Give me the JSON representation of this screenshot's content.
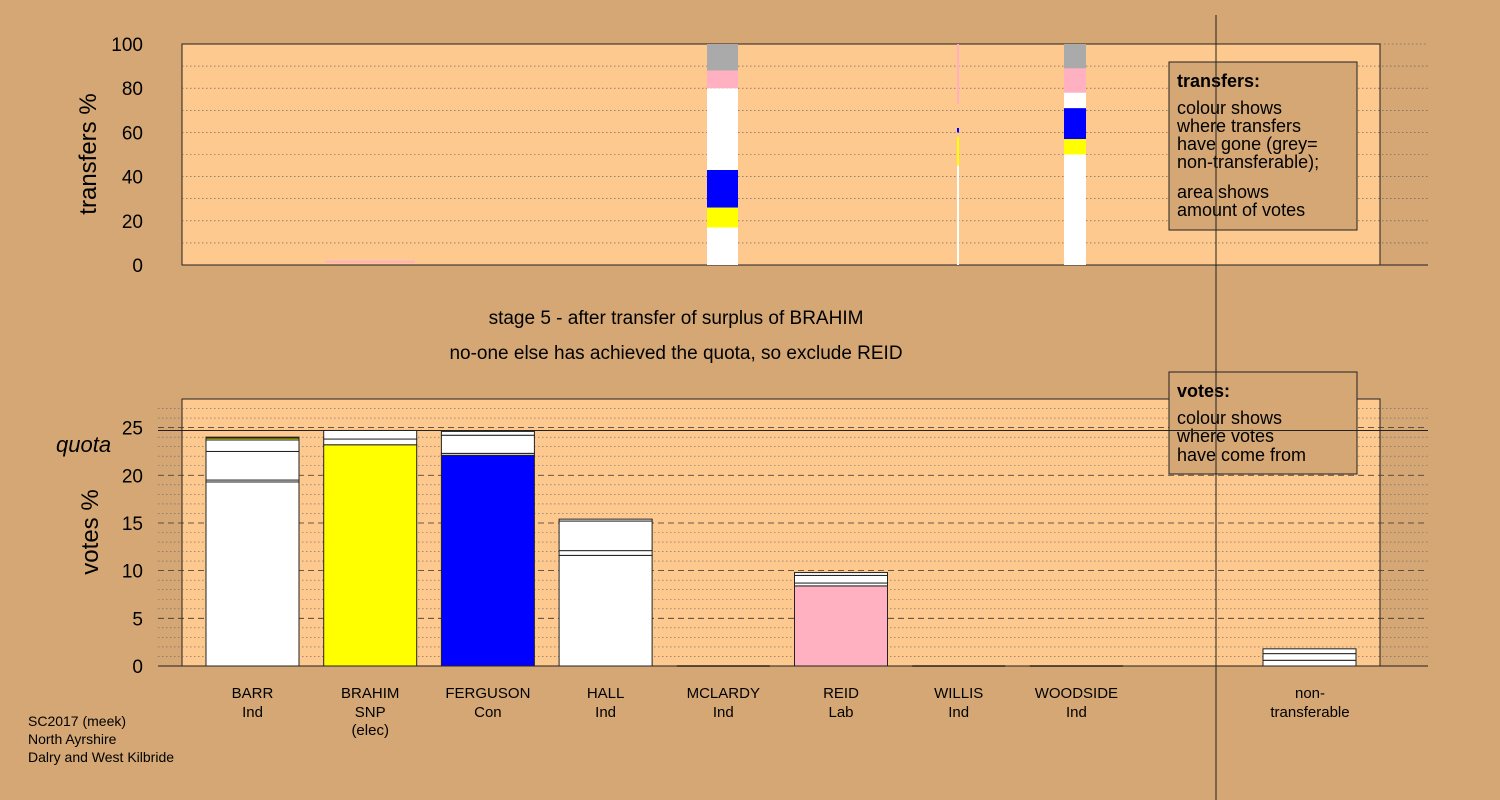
{
  "colors": {
    "background": "#d4a774",
    "plot_area": "#fec98f",
    "white": "#ffffff",
    "yellow": "#ffff00",
    "blue": "#0000ff",
    "pink": "#ffb1c1",
    "grey": "#aaaaaa"
  },
  "chart_data": [
    {
      "id": "transfers",
      "type": "bar",
      "stacked": true,
      "ylabel": "transfers %",
      "ylim": [
        0,
        100
      ],
      "yticks": [
        0,
        20,
        40,
        60,
        80,
        100
      ],
      "grid": true,
      "legend_box": {
        "title": "transfers:",
        "lines_1": [
          "colour shows",
          "where transfers",
          "have gone (grey=",
          "non-transferable);"
        ],
        "lines_2": [
          "area shows",
          "amount of votes"
        ]
      },
      "columns": [
        {
          "candidate": "BRAHIM",
          "width_share": 0.1,
          "segments": [
            {
              "color": "pink",
              "from": 1,
              "to": 2
            }
          ]
        },
        {
          "candidate": "REID",
          "width_share": 0.3,
          "segments": [
            {
              "color": "white",
              "from": 0,
              "to": 17
            },
            {
              "color": "yellow",
              "from": 17,
              "to": 26
            },
            {
              "color": "blue",
              "from": 26,
              "to": 43
            },
            {
              "color": "white",
              "from": 43,
              "to": 80
            },
            {
              "color": "pink",
              "from": 80,
              "to": 88
            },
            {
              "color": "grey",
              "from": 88,
              "to": 100
            }
          ]
        },
        {
          "candidate": "WILLIS",
          "width_share": 0.02,
          "segments": [
            {
              "color": "white",
              "from": 0,
              "to": 45
            },
            {
              "color": "yellow",
              "from": 45,
              "to": 58
            },
            {
              "color": "blue",
              "from": 60,
              "to": 62
            },
            {
              "color": "pink",
              "from": 73,
              "to": 100
            }
          ]
        },
        {
          "candidate": "WOODSIDE",
          "width_share": 0.22,
          "segments": [
            {
              "color": "white",
              "from": 0,
              "to": 50
            },
            {
              "color": "yellow",
              "from": 50,
              "to": 57
            },
            {
              "color": "blue",
              "from": 57,
              "to": 71
            },
            {
              "color": "white",
              "from": 71,
              "to": 78
            },
            {
              "color": "pink",
              "from": 78,
              "to": 89
            },
            {
              "color": "grey",
              "from": 89,
              "to": 100
            }
          ]
        }
      ]
    },
    {
      "id": "votes",
      "type": "bar",
      "stacked": true,
      "ylabel": "votes %",
      "ylim": [
        0,
        28
      ],
      "yticks": [
        0,
        5,
        10,
        15,
        20,
        25
      ],
      "quota": 24.7,
      "quota_label": "quota",
      "grid": true,
      "legend_box": {
        "title": "votes:",
        "lines": [
          "colour shows",
          "where votes",
          "have come from"
        ]
      },
      "categories": [
        {
          "name": "BARR",
          "party": "Ind",
          "note": "",
          "segments": [
            {
              "color": "white",
              "value": 19.3
            },
            {
              "color": "white",
              "value": 0.2
            },
            {
              "color": "white",
              "value": 3.0
            },
            {
              "color": "white",
              "value": 1.2
            },
            {
              "color": "yellow",
              "value": 0.2
            },
            {
              "color": "white",
              "value": 0.1
            }
          ]
        },
        {
          "name": "BRAHIM",
          "party": "SNP",
          "note": "(elec)",
          "segments": [
            {
              "color": "yellow",
              "value": 23.2
            },
            {
              "color": "white",
              "value": 0.6
            },
            {
              "color": "white",
              "value": 0.9
            }
          ]
        },
        {
          "name": "FERGUSON",
          "party": "Con",
          "note": "",
          "segments": [
            {
              "color": "blue",
              "value": 22.1
            },
            {
              "color": "white",
              "value": 0.2
            },
            {
              "color": "white",
              "value": 1.9
            },
            {
              "color": "white",
              "value": 0.4
            }
          ]
        },
        {
          "name": "HALL",
          "party": "Ind",
          "note": "",
          "segments": [
            {
              "color": "white",
              "value": 11.6
            },
            {
              "color": "white",
              "value": 0.5
            },
            {
              "color": "white",
              "value": 3.1
            },
            {
              "color": "white",
              "value": 0.2
            }
          ]
        },
        {
          "name": "MCLARDY",
          "party": "Ind",
          "note": "",
          "segments": []
        },
        {
          "name": "REID",
          "party": "Lab",
          "note": "",
          "segments": [
            {
              "color": "pink",
              "value": 8.4
            },
            {
              "color": "white",
              "value": 0.3
            },
            {
              "color": "white",
              "value": 0.8
            },
            {
              "color": "white",
              "value": 0.3
            }
          ]
        },
        {
          "name": "WILLIS",
          "party": "Ind",
          "note": "",
          "segments": []
        },
        {
          "name": "WOODSIDE",
          "party": "Ind",
          "note": "",
          "segments": []
        }
      ],
      "nontransferable": {
        "name": "non-",
        "name2": "transferable",
        "segments": [
          {
            "color": "white",
            "value": 0.6
          },
          {
            "color": "white",
            "value": 0.7
          },
          {
            "color": "white",
            "value": 0.5
          }
        ]
      }
    }
  ],
  "stage_text": "stage 5 - after transfer of surplus of BRAHIM",
  "stage_subtext": "no-one else has achieved the quota, so exclude REID",
  "footer": [
    "SC2017 (meek)",
    "North Ayrshire",
    "Dalry and West Kilbride"
  ]
}
